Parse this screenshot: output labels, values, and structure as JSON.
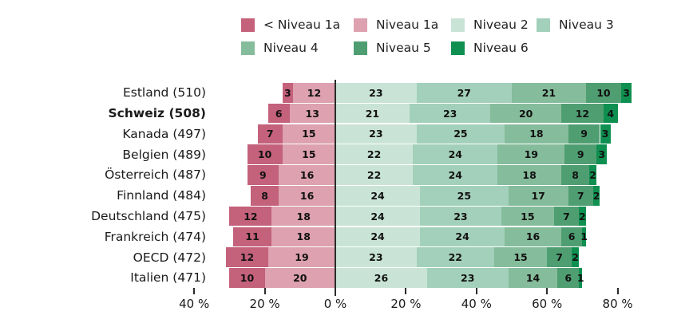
{
  "chart_data": {
    "type": "bar",
    "subtype": "diverging-stacked-horizontal",
    "title": "",
    "legend_position": "top",
    "legend": [
      {
        "label": "< Niveau 1a",
        "color": "#c4617b",
        "row": 0,
        "col": 0
      },
      {
        "label": "Niveau 1a",
        "color": "#dda1af",
        "row": 0,
        "col": 1
      },
      {
        "label": "Niveau 2",
        "color": "#c9e4d7",
        "row": 0,
        "col": 2
      },
      {
        "label": "Niveau 3",
        "color": "#a3d0ba",
        "row": 0,
        "col": 3
      },
      {
        "label": "Niveau 4",
        "color": "#85bc9b",
        "row": 1,
        "col": 0
      },
      {
        "label": "Niveau 5",
        "color": "#4f9e71",
        "row": 1,
        "col": 1
      },
      {
        "label": "Niveau 6",
        "color": "#0f9051",
        "row": 1,
        "col": 2
      }
    ],
    "left_series_names": [
      "< Niveau 1a",
      "Niveau 1a"
    ],
    "right_series_names": [
      "Niveau 2",
      "Niveau 3",
      "Niveau 4",
      "Niveau 5",
      "Niveau 6"
    ],
    "rows": [
      {
        "label": "Estland (510)",
        "bold": false,
        "left": [
          3,
          12
        ],
        "right": [
          23,
          27,
          21,
          10,
          3
        ]
      },
      {
        "label": "Schweiz (508)",
        "bold": true,
        "left": [
          6,
          13
        ],
        "right": [
          21,
          23,
          20,
          12,
          4
        ]
      },
      {
        "label": "Kanada (497)",
        "bold": false,
        "left": [
          7,
          15
        ],
        "right": [
          23,
          25,
          18,
          9,
          3
        ]
      },
      {
        "label": "Belgien (489)",
        "bold": false,
        "left": [
          10,
          15
        ],
        "right": [
          22,
          24,
          19,
          9,
          3
        ]
      },
      {
        "label": "Österreich (487)",
        "bold": false,
        "left": [
          9,
          16
        ],
        "right": [
          22,
          24,
          18,
          8,
          2
        ]
      },
      {
        "label": "Finnland (484)",
        "bold": false,
        "left": [
          8,
          16
        ],
        "right": [
          24,
          25,
          17,
          7,
          2
        ]
      },
      {
        "label": "Deutschland (475)",
        "bold": false,
        "left": [
          12,
          18
        ],
        "right": [
          24,
          23,
          15,
          7,
          2
        ]
      },
      {
        "label": "Frankreich (474)",
        "bold": false,
        "left": [
          11,
          18
        ],
        "right": [
          24,
          24,
          16,
          6,
          1
        ]
      },
      {
        "label": "OECD (472)",
        "bold": false,
        "left": [
          12,
          19
        ],
        "right": [
          23,
          22,
          15,
          7,
          2
        ]
      },
      {
        "label": "Italien (471)",
        "bold": false,
        "left": [
          10,
          20
        ],
        "right": [
          26,
          23,
          14,
          6,
          1
        ]
      }
    ],
    "x_axis": {
      "unit": "%",
      "tick_values": [
        -40,
        -20,
        0,
        20,
        40,
        60,
        80
      ],
      "tick_labels": [
        "40 %",
        "20 %",
        "0 %",
        "20 %",
        "40 %",
        "60 %",
        "80 %"
      ],
      "xlim": [
        -45,
        90
      ]
    }
  }
}
